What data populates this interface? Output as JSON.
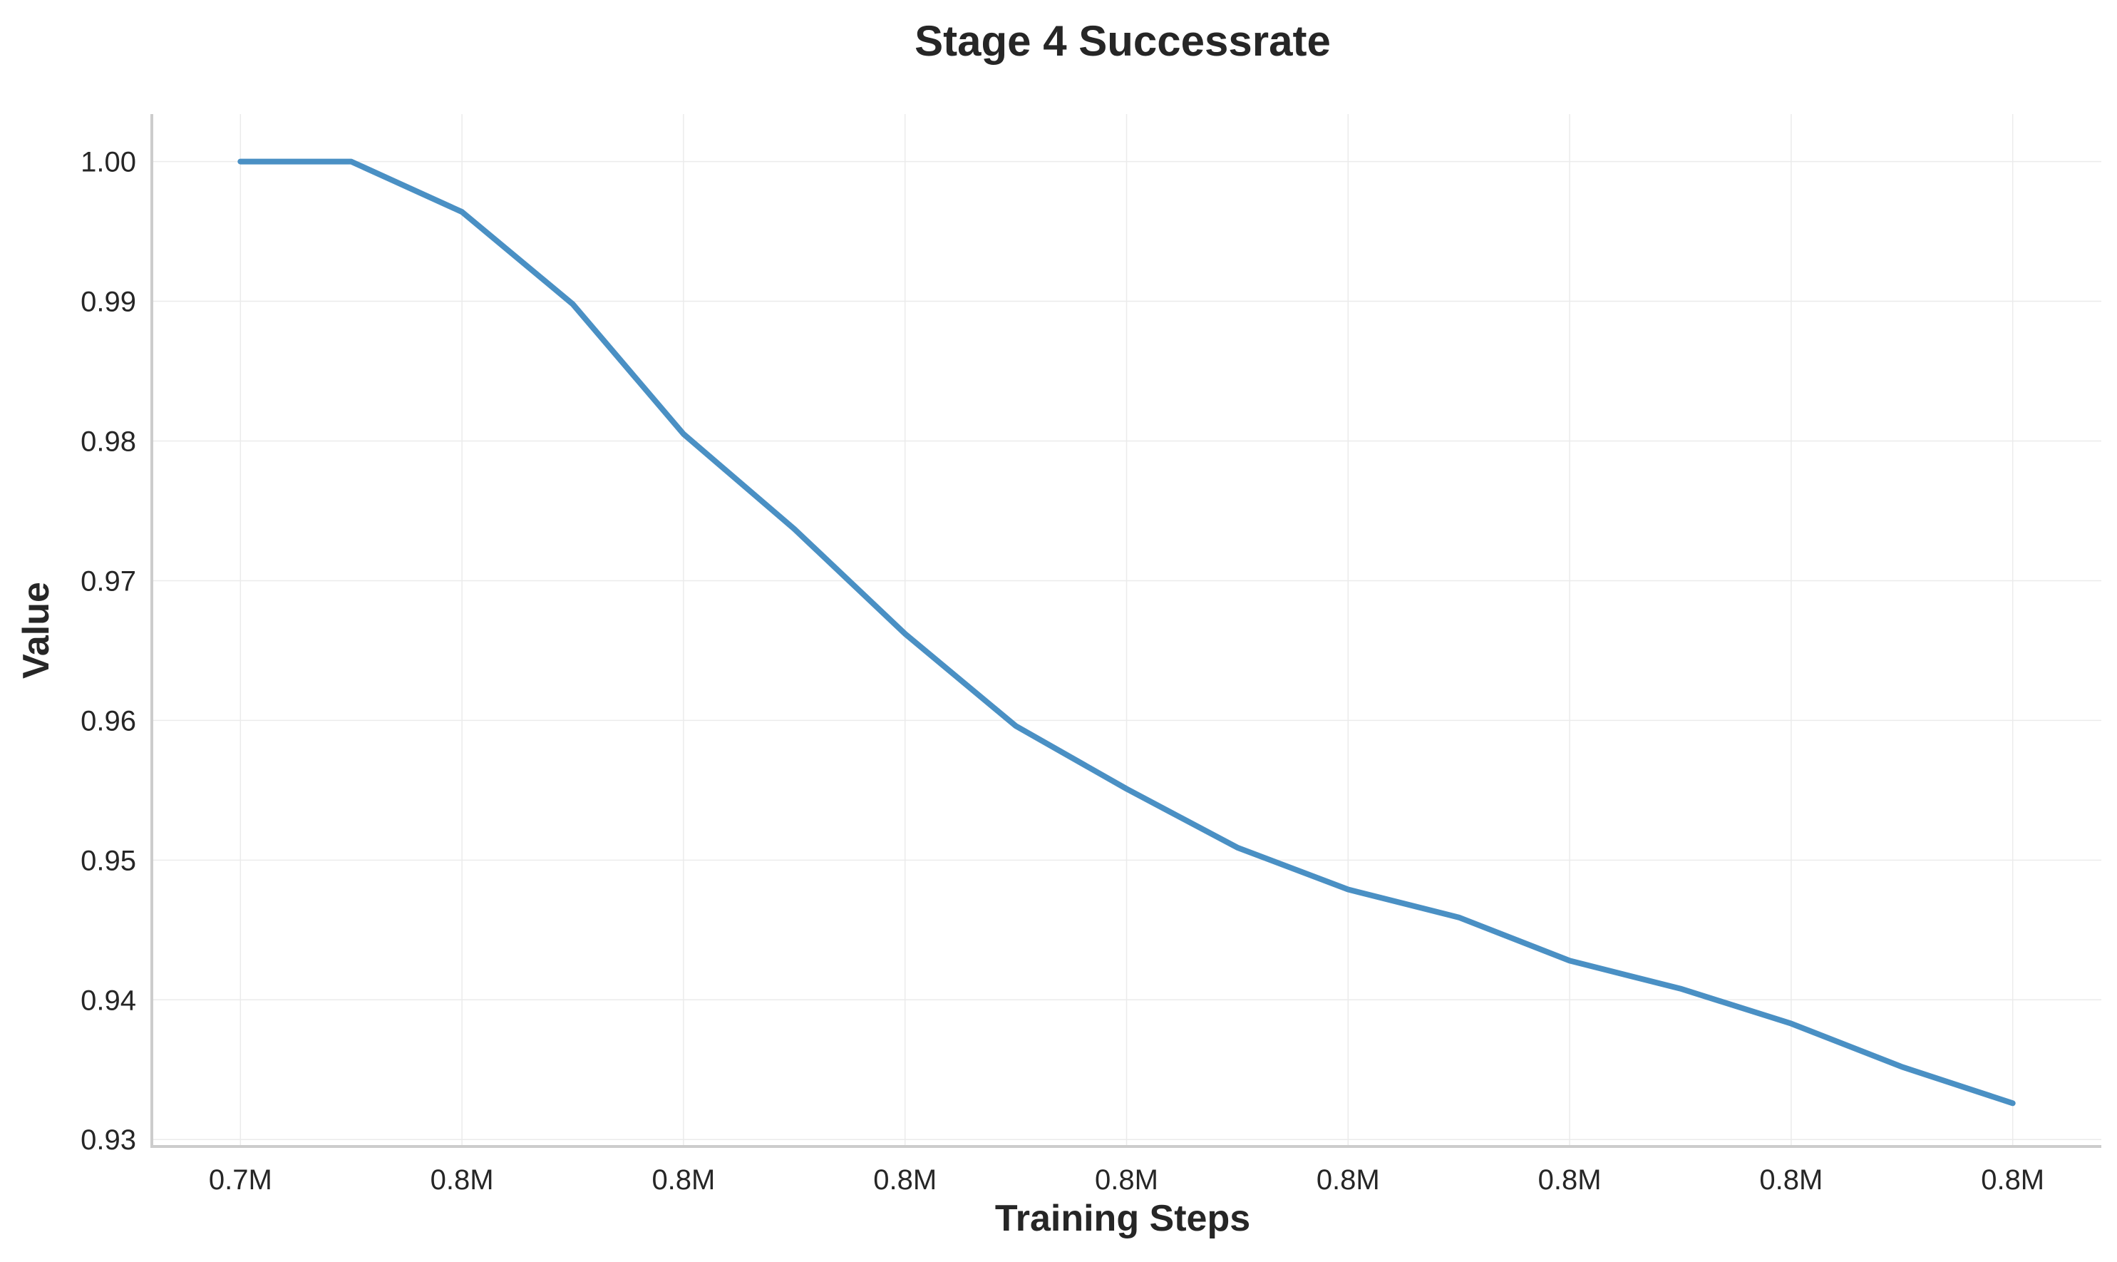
{
  "chart_data": {
    "type": "line",
    "title": "Stage 4 Successrate",
    "xlabel": "Training Steps",
    "ylabel": "Value",
    "x": [
      0,
      0.5,
      1,
      1.5,
      2,
      2.5,
      3,
      3.5,
      4,
      4.5,
      5,
      5.5,
      6,
      6.5,
      7,
      7.5,
      8
    ],
    "x_tick_values": [
      0,
      1,
      2,
      3,
      4,
      5,
      6,
      7,
      8
    ],
    "x_tick_labels": [
      "0.7M",
      "0.8M",
      "0.8M",
      "0.8M",
      "0.8M",
      "0.8M",
      "0.8M",
      "0.8M",
      "0.8M"
    ],
    "xlim": [
      -0.4,
      8.4
    ],
    "y_ticks": [
      0.93,
      0.94,
      0.95,
      0.96,
      0.97,
      0.98,
      0.99,
      1.0
    ],
    "y_tick_labels": [
      "0.93",
      "0.94",
      "0.95",
      "0.96",
      "0.97",
      "0.98",
      "0.99",
      "1.00"
    ],
    "ylim": [
      0.9295,
      1.0034
    ],
    "series": [
      {
        "values": [
          1.0,
          1.0,
          0.9964,
          0.9898,
          0.9805,
          0.9737,
          0.9662,
          0.9596,
          0.9551,
          0.9509,
          0.9479,
          0.9459,
          0.9428,
          0.9408,
          0.9383,
          0.9352,
          0.9326
        ],
        "color": "#4a90c4"
      }
    ],
    "grid": true,
    "legend": "none"
  }
}
